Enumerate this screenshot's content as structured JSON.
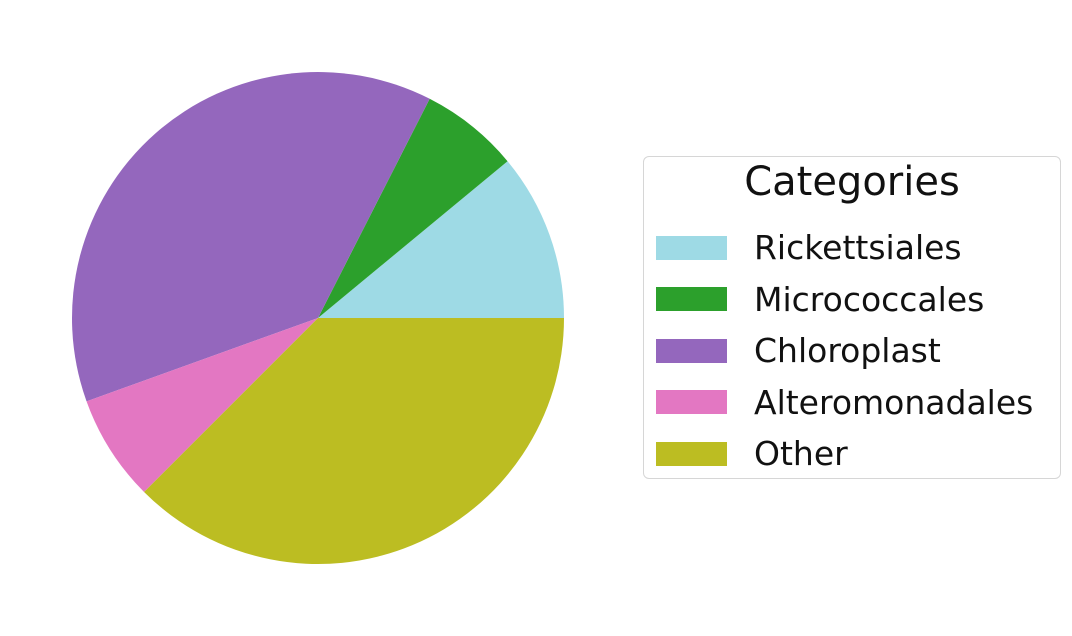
{
  "chart_data": {
    "type": "pie",
    "title": "",
    "start_angle_deg": 0,
    "direction": "counterclockwise",
    "slices": [
      {
        "label": "Rickettsiales",
        "value": 11,
        "color": "#9edae5"
      },
      {
        "label": "Micrococcales",
        "value": 6.5,
        "color": "#2ca02c"
      },
      {
        "label": "Chloroplast",
        "value": 38,
        "color": "#9467bd"
      },
      {
        "label": "Alteromonadales",
        "value": 7,
        "color": "#e377c2"
      },
      {
        "label": "Other",
        "value": 37.5,
        "color": "#bcbd22"
      }
    ],
    "legend": {
      "title": "Categories",
      "placement": "right"
    }
  }
}
